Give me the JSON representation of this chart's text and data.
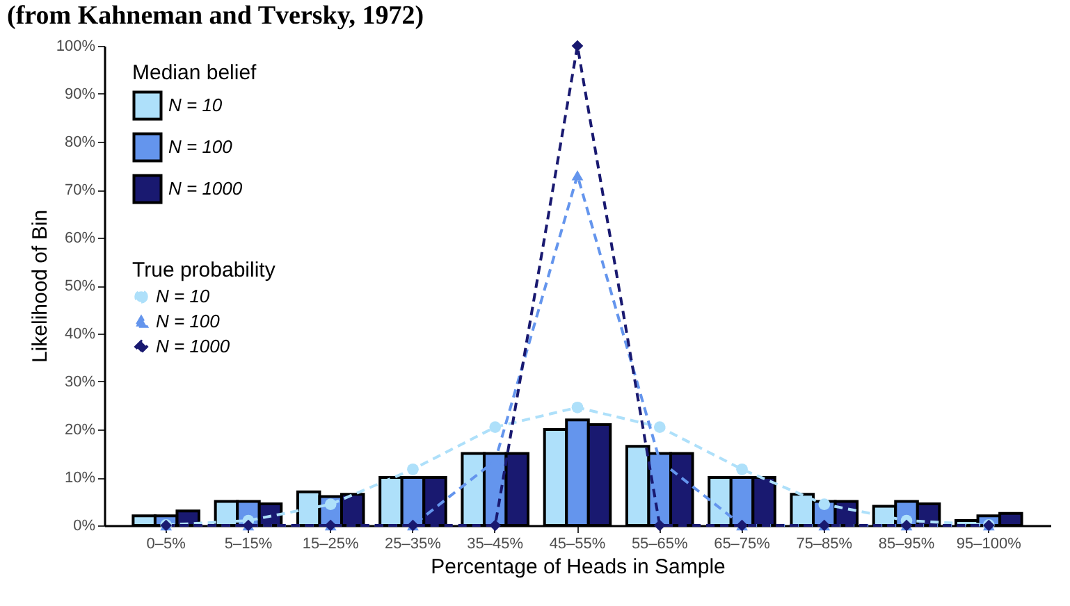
{
  "chart_data": {
    "type": "bar",
    "title": "(from Kahneman and Tversky, 1972)",
    "xlabel": "Percentage of Heads in Sample",
    "ylabel": "Likelihood of Bin",
    "legend_title": "Median belief",
    "annotations": [
      "True probability"
    ],
    "categories": [
      "0–5%",
      "5–15%",
      "15–25%",
      "25–35%",
      "35–45%",
      "45–55%",
      "55–65%",
      "65–75%",
      "75–85%",
      "85–95%",
      "95–100%"
    ],
    "series": [
      {
        "name": "N = 10",
        "color": "#aee0fa",
        "values": [
          2,
          5,
          7,
          10,
          15,
          20,
          16.5,
          10,
          6.5,
          4,
          1
        ]
      },
      {
        "name": "N = 100",
        "color": "#6495ed",
        "values": [
          2,
          5,
          6,
          10,
          15,
          22,
          15,
          10,
          5,
          5,
          2
        ]
      },
      {
        "name": "N = 1000",
        "color": "#191970",
        "values": [
          3,
          4.5,
          6.5,
          10,
          15,
          21,
          15,
          10,
          5,
          4.5,
          2.5
        ]
      },
      {
        "type": "line",
        "name": "N = 10",
        "color": "#aee0fa",
        "marker": "circle",
        "line_style": "dashed",
        "values": [
          0.1,
          1,
          4.4,
          11.7,
          20.5,
          24.6,
          20.5,
          11.7,
          4.4,
          1,
          0.1
        ]
      },
      {
        "type": "line",
        "name": "N = 100",
        "color": "#6495ed",
        "marker": "triangle",
        "line_style": "dashed",
        "values": [
          0,
          0,
          0,
          0,
          13.5,
          73,
          13.5,
          0,
          0,
          0,
          0
        ]
      },
      {
        "type": "line",
        "name": "N = 1000",
        "color": "#191970",
        "marker": "diamond",
        "line_style": "dashed",
        "values": [
          0,
          0,
          0,
          0,
          0,
          100,
          0,
          0,
          0,
          0,
          0
        ]
      }
    ],
    "ylim": [
      0,
      100
    ],
    "yticks": [
      {
        "value": 0,
        "label": "0%"
      },
      {
        "value": 10,
        "label": "10%"
      },
      {
        "value": 20,
        "label": "20%"
      },
      {
        "value": 30,
        "label": "30%"
      },
      {
        "value": 40,
        "label": "40%"
      },
      {
        "value": 50,
        "label": "50%"
      },
      {
        "value": 60,
        "label": "60%"
      },
      {
        "value": 70,
        "label": "70%"
      },
      {
        "value": 80,
        "label": "80%"
      },
      {
        "value": 90,
        "label": "90%"
      },
      {
        "value": 100,
        "label": "100%"
      }
    ],
    "legend": "top left",
    "grid": false
  }
}
